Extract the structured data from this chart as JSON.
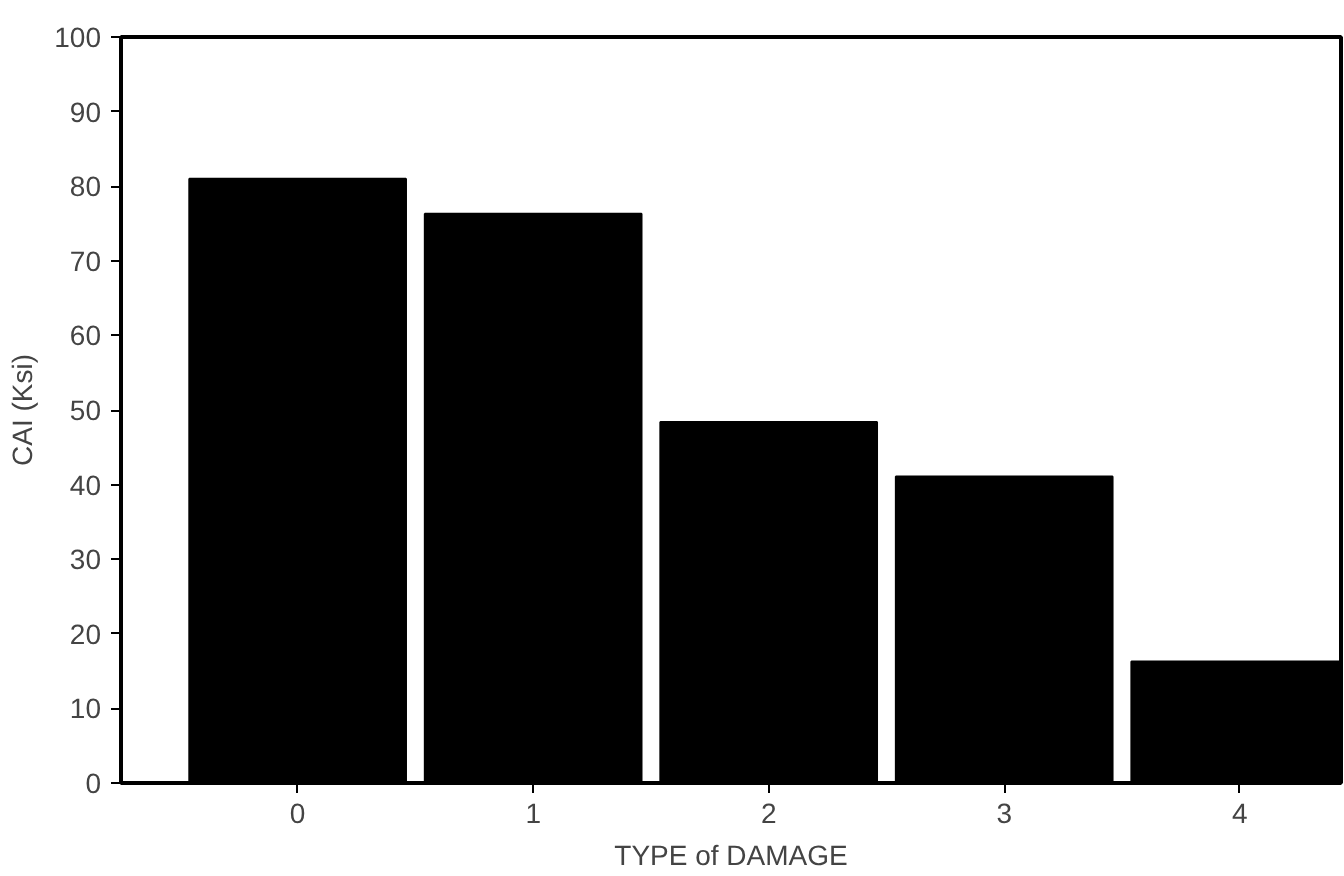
{
  "chart_data": {
    "type": "bar",
    "xlabel": "TYPE of DAMAGE",
    "ylabel": "CAI (Ksi)",
    "categories": [
      "0",
      "1",
      "2",
      "3",
      "4"
    ],
    "values": [
      81,
      76.3,
      48.4,
      41.1,
      16.3
    ],
    "color": "#000000",
    "ylim": [
      0,
      100
    ],
    "yticks": [
      0,
      10,
      20,
      30,
      40,
      50,
      60,
      70,
      80,
      90,
      100
    ],
    "grid": false
  }
}
